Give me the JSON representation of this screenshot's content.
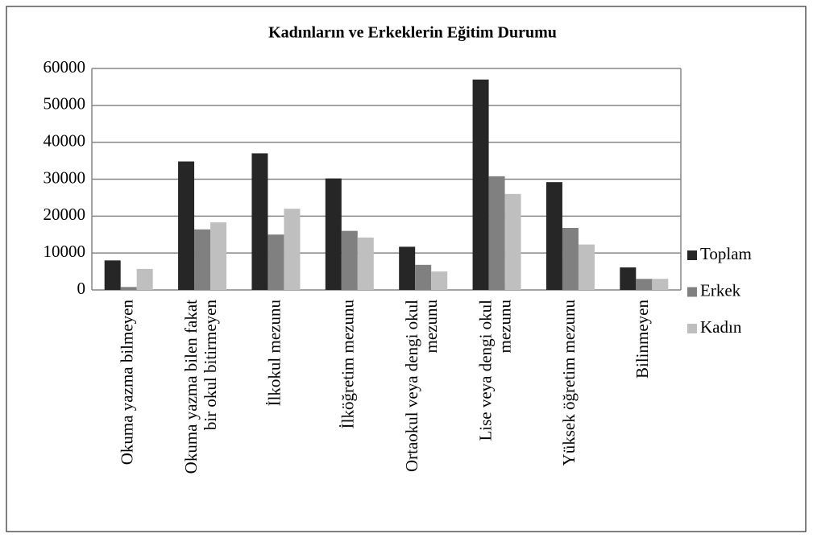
{
  "chart_data": {
    "type": "bar",
    "title": "Kadınların ve Erkeklerin Eğitim Durumu",
    "categories": [
      "Okuma yazma bilmeyen",
      "Okuma yazma bilen fakat\nbir okul bitirmeyen",
      "İlkokul mezunu",
      "İlköğretim mezunu",
      "Ortaokul veya dengi okul\nmezunu",
      "Lise veya dengi okul\nmezunu",
      "Yüksek öğretim mezunu",
      "Bilinmeyen"
    ],
    "series": [
      {
        "name": "Toplam",
        "color": "#262626",
        "values": [
          8000,
          34800,
          37000,
          30200,
          11700,
          57000,
          29200,
          6100
        ]
      },
      {
        "name": "Erkek",
        "color": "#808080",
        "values": [
          800,
          16400,
          15000,
          16000,
          6800,
          30800,
          16800,
          3000
        ]
      },
      {
        "name": "Kadın",
        "color": "#bfbfbf",
        "values": [
          5700,
          18300,
          22000,
          14200,
          5000,
          26000,
          12300,
          3000
        ]
      }
    ],
    "ylim": [
      0,
      60000
    ],
    "yticks": [
      0,
      10000,
      20000,
      30000,
      40000,
      50000,
      60000
    ],
    "grid": true,
    "legend": "right"
  }
}
